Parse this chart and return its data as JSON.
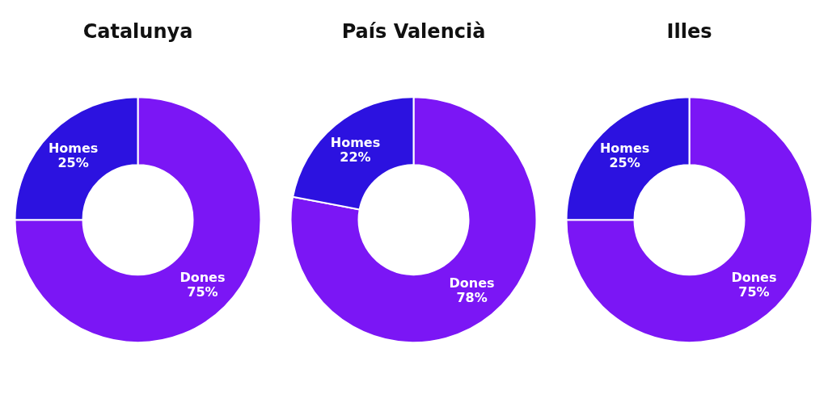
{
  "chart_data": [
    {
      "type": "donut",
      "title": "Catalunya",
      "categories": [
        "Dones",
        "Homes"
      ],
      "values": [
        75,
        25
      ],
      "colors": [
        "#7b16f5",
        "#2c12e0"
      ],
      "value_labels": [
        "75%",
        "25%"
      ]
    },
    {
      "type": "donut",
      "title": "País Valencià",
      "categories": [
        "Dones",
        "Homes"
      ],
      "values": [
        78,
        22
      ],
      "colors": [
        "#7b16f5",
        "#2c12e0"
      ],
      "value_labels": [
        "78%",
        "22%"
      ]
    },
    {
      "type": "donut",
      "title": "Illes",
      "categories": [
        "Dones",
        "Homes"
      ],
      "values": [
        75,
        25
      ],
      "colors": [
        "#7b16f5",
        "#2c12e0"
      ],
      "value_labels": [
        "75%",
        "25%"
      ]
    }
  ]
}
